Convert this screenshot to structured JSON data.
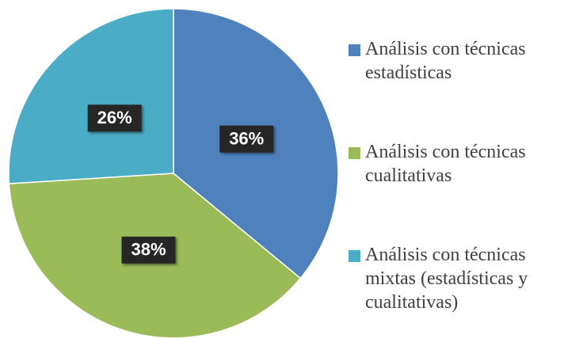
{
  "chart_data": {
    "type": "pie",
    "categories": [
      "Análisis con técnicas estadísticas",
      "Análisis con técnicas cualitativas",
      "Análisis con técnicas mixtas (estadísticas y cualitativas)"
    ],
    "values": [
      36,
      38,
      26
    ],
    "value_labels": [
      "36%",
      "38%",
      "26%"
    ],
    "colors": [
      "#4f81bd",
      "#9bbb59",
      "#4bacc6"
    ],
    "legend": "right"
  }
}
